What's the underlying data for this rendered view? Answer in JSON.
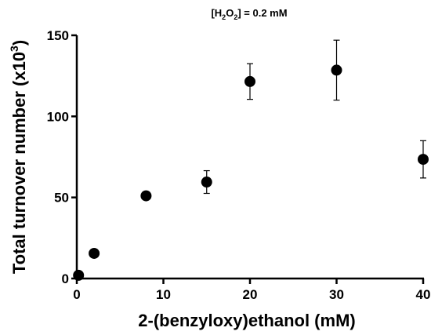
{
  "chart_data": {
    "type": "scatter",
    "title": {
      "pre": "[H",
      "s1": "2",
      "mid": "O",
      "s2": "2",
      "post": "] = 0.2 mM"
    },
    "xlabel": "2-(benzyloxy)ethanol (mM)",
    "ylabel": {
      "main": "Total turnover number (x10",
      "sup": "3",
      "close": ")"
    },
    "xlim": [
      0,
      40
    ],
    "ylim": [
      0,
      150
    ],
    "xticks": [
      0,
      10,
      20,
      30,
      40
    ],
    "yticks": [
      0,
      50,
      100,
      150
    ],
    "grid": false,
    "points": [
      {
        "x": 0.2,
        "y": 2,
        "err": 0
      },
      {
        "x": 2,
        "y": 15.5,
        "err": 0
      },
      {
        "x": 8,
        "y": 51,
        "err": 0
      },
      {
        "x": 15,
        "y": 59.5,
        "err": 7
      },
      {
        "x": 20,
        "y": 121.5,
        "err": 11
      },
      {
        "x": 30,
        "y": 128.5,
        "err": 18.5
      },
      {
        "x": 40,
        "y": 73.5,
        "err": 11.5
      }
    ],
    "marker_color": "#000000"
  }
}
